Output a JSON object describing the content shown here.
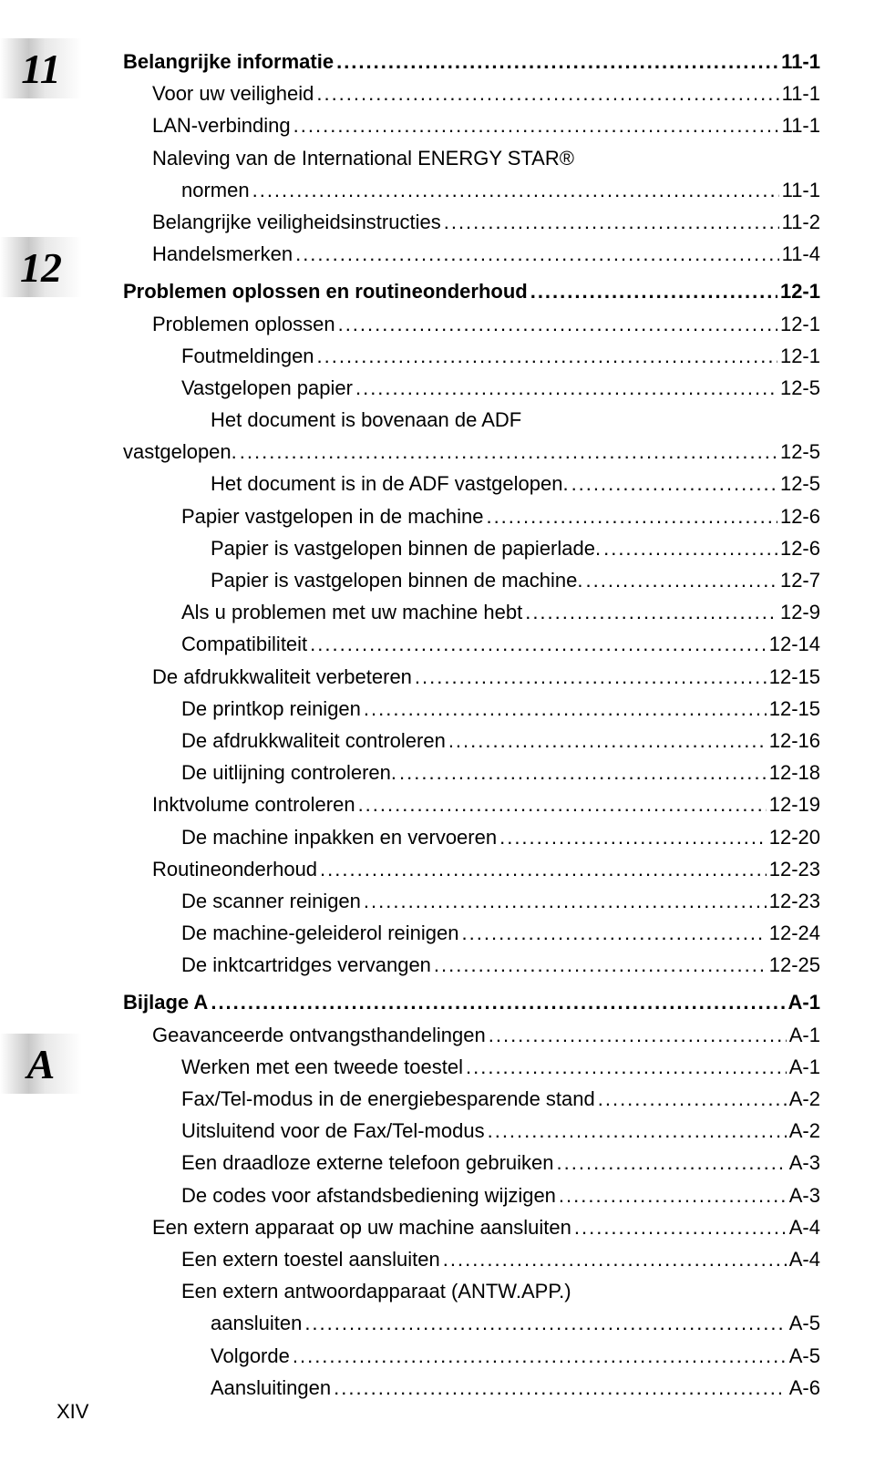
{
  "chapters": {
    "ch11": {
      "badge": "11"
    },
    "ch12": {
      "badge": "12"
    },
    "appA": {
      "badge": "A"
    }
  },
  "pageNumber": "XIV",
  "toc": [
    {
      "label": "Belangrijke informatie",
      "page": "11-1",
      "indent": 0,
      "bold": true
    },
    {
      "label": "Voor uw veiligheid",
      "page": "11-1",
      "indent": 1
    },
    {
      "label": "LAN-verbinding",
      "page": "11-1",
      "indent": 1
    },
    {
      "label": "Naleving van de International ENERGY STAR®",
      "cont": "normen",
      "page": "11-1",
      "indent": 1
    },
    {
      "label": "Belangrijke veiligheidsinstructies",
      "page": "11-2",
      "indent": 1
    },
    {
      "label": "Handelsmerken",
      "page": "11-4",
      "indent": 1,
      "gapAfter": true
    },
    {
      "label": "Problemen oplossen en routineonderhoud",
      "page": "12-1",
      "indent": 0,
      "bold": true
    },
    {
      "label": "Problemen oplossen",
      "page": "12-1",
      "indent": 1
    },
    {
      "label": "Foutmeldingen",
      "page": "12-1",
      "indent": 2
    },
    {
      "label": "Vastgelopen papier",
      "page": "12-5",
      "indent": 2
    },
    {
      "label": "Het document is bovenaan de ADF",
      "cont": "vastgelopen.",
      "page": "12-5",
      "indent": 3
    },
    {
      "label": "Het document is in de ADF vastgelopen.",
      "page": "12-5",
      "indent": 3
    },
    {
      "label": "Papier vastgelopen in de machine",
      "page": "12-6",
      "indent": 2
    },
    {
      "label": "Papier is vastgelopen binnen de papierlade.",
      "page": "12-6",
      "indent": 3
    },
    {
      "label": "Papier is vastgelopen binnen de machine.",
      "page": "12-7",
      "indent": 3
    },
    {
      "label": "Als u problemen met uw machine hebt",
      "page": "12-9",
      "indent": 2
    },
    {
      "label": "Compatibiliteit",
      "page": "12-14",
      "indent": 2
    },
    {
      "label": "De afdrukkwaliteit verbeteren",
      "page": "12-15",
      "indent": 1
    },
    {
      "label": "De printkop reinigen",
      "page": "12-15",
      "indent": 2
    },
    {
      "label": "De afdrukkwaliteit controleren",
      "page": "12-16",
      "indent": 2
    },
    {
      "label": "De uitlijning controleren.",
      "page": "12-18",
      "indent": 2
    },
    {
      "label": "Inktvolume controleren",
      "page": "12-19",
      "indent": 1
    },
    {
      "label": "De machine inpakken en vervoeren",
      "page": "12-20",
      "indent": 2
    },
    {
      "label": "Routineonderhoud",
      "page": "12-23",
      "indent": 1
    },
    {
      "label": "De scanner reinigen",
      "page": "12-23",
      "indent": 2
    },
    {
      "label": "De machine-geleiderol reinigen",
      "page": "12-24",
      "indent": 2
    },
    {
      "label": "De inktcartridges vervangen",
      "page": "12-25",
      "indent": 2,
      "gapAfter": true
    },
    {
      "label": "Bijlage A",
      "page": "A-1",
      "indent": 0,
      "bold": true
    },
    {
      "label": "Geavanceerde ontvangsthandelingen",
      "page": "A-1",
      "indent": 1
    },
    {
      "label": "Werken met een tweede toestel",
      "page": "A-1",
      "indent": 2
    },
    {
      "label": "Fax/Tel-modus in de energiebesparende stand",
      "page": "A-2",
      "indent": 2
    },
    {
      "label": "Uitsluitend voor de Fax/Tel-modus",
      "page": "A-2",
      "indent": 2
    },
    {
      "label": "Een draadloze externe telefoon gebruiken",
      "page": "A-3",
      "indent": 2
    },
    {
      "label": "De codes voor afstandsbediening wijzigen",
      "page": "A-3",
      "indent": 2
    },
    {
      "label": "Een extern apparaat op uw machine aansluiten",
      "page": "A-4",
      "indent": 1
    },
    {
      "label": "Een extern toestel aansluiten",
      "page": "A-4",
      "indent": 2
    },
    {
      "label": "Een extern antwoordapparaat (ANTW.APP.)",
      "cont": "aansluiten",
      "page": "A-5",
      "indent": 2
    },
    {
      "label": "Volgorde",
      "page": "A-5",
      "indent": 3
    },
    {
      "label": "Aansluitingen",
      "page": "A-6",
      "indent": 3
    }
  ]
}
